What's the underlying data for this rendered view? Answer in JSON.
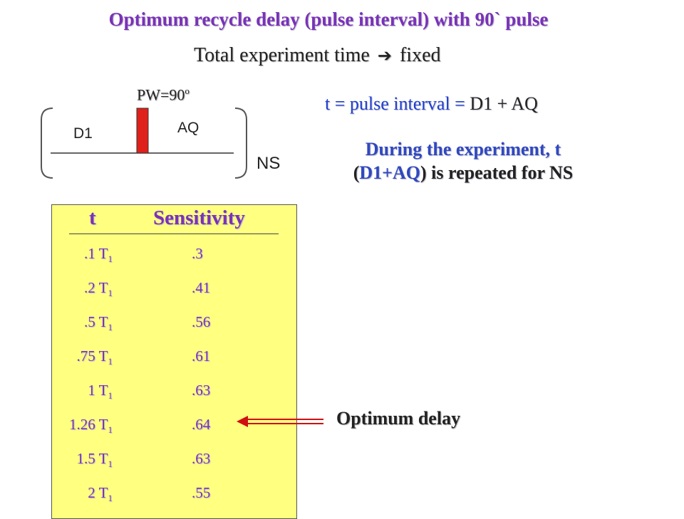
{
  "title": "Optimum recycle delay (pulse interval) with 90` pulse",
  "subtitle": {
    "text": "Total experiment time",
    "arrow": "➔",
    "suffix": "fixed"
  },
  "diagram": {
    "pulse_label": "PW=90",
    "pulse_degree": "o",
    "d1_label": "D1",
    "aq_label": "AQ",
    "ns_label": "NS",
    "pulse_color": "#e0201a"
  },
  "formula": {
    "lhs": "t = pulse interval =",
    "rhs": "D1 + AQ"
  },
  "during": {
    "line1_a": "During the experiment,",
    "line1_t": "t",
    "line2_open": "(",
    "line2_expr": "D1+AQ",
    "line2_close": ")",
    "line2_rest": "is repeated for NS"
  },
  "table": {
    "header_t": "t",
    "header_s": "Sensitivity",
    "rows": [
      {
        "t": ".1 T",
        "sub": "1",
        "s": ".3"
      },
      {
        "t": ".2 T",
        "sub": "1",
        "s": ".41"
      },
      {
        "t": ".5 T",
        "sub": "1",
        "s": ".56"
      },
      {
        "t": ".75 T",
        "sub": "1",
        "s": ".61"
      },
      {
        "t": "1 T",
        "sub": "1",
        "s": ".63"
      },
      {
        "t": "1.26 T",
        "sub": "1",
        "s": ".64"
      },
      {
        "t": "1.5 T",
        "sub": "1",
        "s": ".63"
      },
      {
        "t": "2 T",
        "sub": "1",
        "s": ".55"
      }
    ]
  },
  "optimum_label": "Optimum delay",
  "colors": {
    "title": "#7a32b8",
    "blue_text": "#1f3fd0",
    "panel": "#ffff80",
    "arrow": "#d01010"
  }
}
